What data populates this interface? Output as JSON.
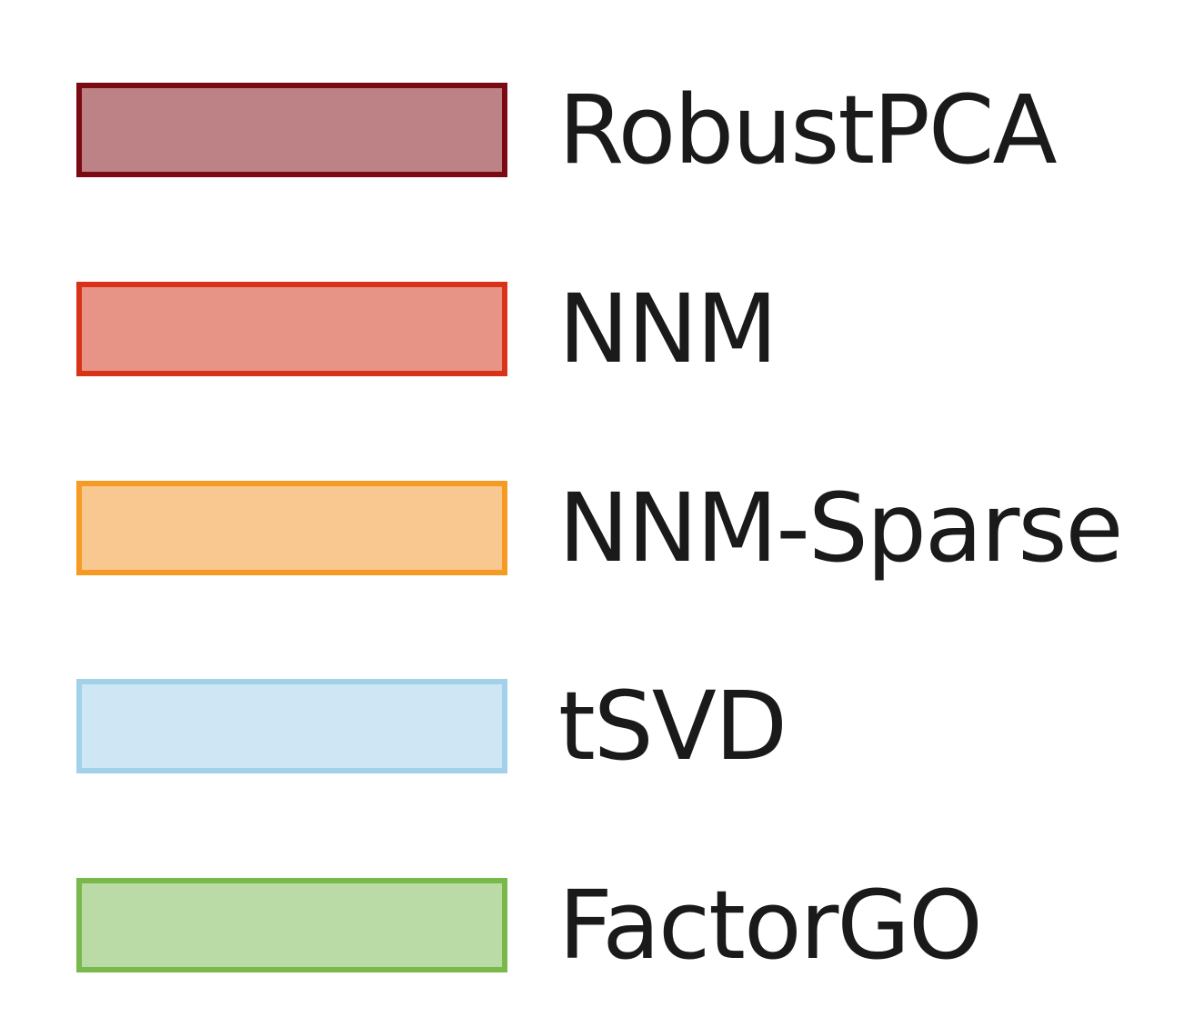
{
  "chart_data": {
    "type": "bar",
    "title": "",
    "legend": {
      "placement": "center",
      "entries": [
        {
          "name": "RobustPCA",
          "fill": "#bd8285",
          "stroke": "#7a0a14"
        },
        {
          "name": "NNM",
          "fill": "#e79486",
          "stroke": "#d83318"
        },
        {
          "name": "NNM-Sparse",
          "fill": "#f9c790",
          "stroke": "#f59a23"
        },
        {
          "name": "tSVD",
          "fill": "#cfe6f4",
          "stroke": "#a2d2ea"
        },
        {
          "name": "FactorGO",
          "fill": "#badba5",
          "stroke": "#79b84b"
        }
      ]
    }
  }
}
